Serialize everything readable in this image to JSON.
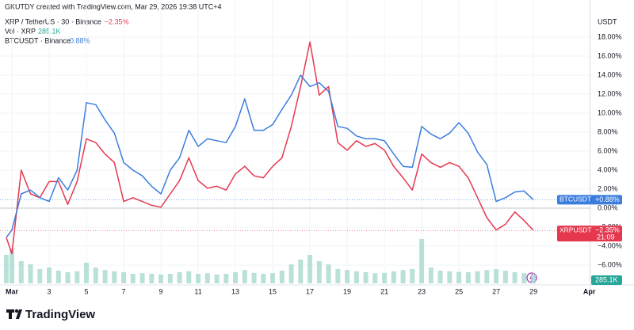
{
  "header": {
    "credit": "GKUTDY created with TradingView.com, Mar 29, 2026 19:38 UTC+4",
    "brand": "TradingView"
  },
  "chart_data": {
    "type": "line",
    "y_unit": "USDT",
    "x": [
      0.7,
      1,
      1.5,
      2,
      2.5,
      3,
      3.5,
      4,
      4.5,
      5,
      5.5,
      6,
      6.5,
      7,
      7.5,
      8,
      8.5,
      9,
      9.5,
      10,
      10.5,
      11,
      11.5,
      12,
      12.5,
      13,
      13.5,
      14,
      14.5,
      15,
      15.5,
      16,
      16.5,
      17,
      17.5,
      18,
      18.5,
      19,
      19.5,
      20,
      20.5,
      21,
      21.5,
      22,
      22.5,
      23,
      23.5,
      24,
      24.5,
      25,
      25.5,
      26,
      26.5,
      27,
      27.5,
      28,
      28.5,
      29
    ],
    "xlim": [
      0.36,
      32.06
    ],
    "xticks": [
      {
        "value": 1,
        "label": "Mar"
      },
      3,
      5,
      7,
      9,
      11,
      13,
      15,
      17,
      19,
      21,
      23,
      25,
      27,
      29,
      {
        "value": 32,
        "label": "Apr"
      }
    ],
    "ylim": [
      -7.92,
      20.25
    ],
    "yticks": [
      {
        "value": 18,
        "label": "18.00%"
      },
      {
        "value": 16,
        "label": "16.00%"
      },
      {
        "value": 14,
        "label": "14.00%"
      },
      {
        "value": 12,
        "label": "12.00%"
      },
      {
        "value": 10,
        "label": "10.00%"
      },
      {
        "value": 8,
        "label": "8.00%"
      },
      {
        "value": 6,
        "label": "6.00%"
      },
      {
        "value": 4,
        "label": "4.00%"
      },
      {
        "value": 2,
        "label": "2.00%"
      },
      {
        "value": 0,
        "label": "0.00%"
      },
      {
        "value": -2,
        "label": "−2.00%"
      },
      {
        "value": -4,
        "label": "−4.00%"
      },
      {
        "value": -6,
        "label": "−6.00%"
      }
    ],
    "series": [
      {
        "name": "XRPUSDT",
        "legend_name": "XRP / TetherUS · 30 · Binance",
        "last_label": "−2.35%",
        "countdown": "21:09",
        "color": "#e5384f",
        "values": [
          -3.1,
          -4.8,
          4.0,
          1.5,
          1.1,
          2.8,
          2.8,
          0.4,
          2.8,
          7.3,
          6.9,
          5.7,
          4.8,
          0.7,
          1.1,
          0.7,
          0.3,
          0.1,
          1.5,
          2.9,
          5.3,
          2.9,
          2.1,
          2.3,
          1.9,
          3.6,
          4.4,
          3.4,
          3.2,
          4.4,
          5.3,
          8.6,
          12.8,
          17.5,
          11.9,
          12.8,
          6.9,
          6.1,
          7.1,
          6.5,
          6.8,
          6.1,
          4.4,
          3.2,
          1.9,
          5.7,
          4.8,
          4.3,
          4.8,
          4.4,
          3.2,
          1.1,
          -1.0,
          -2.3,
          -1.7,
          -0.4,
          -1.3,
          -2.35
        ]
      },
      {
        "name": "BTCUSDT",
        "legend_name": "BTCUSDT · Binance",
        "legend_label": "0.88%",
        "last_label": "+0.88%",
        "color": "#3b7ddd",
        "values": [
          -3.1,
          -2.3,
          1.5,
          1.9,
          1.1,
          0.7,
          3.2,
          1.9,
          4.0,
          11.1,
          10.9,
          9.3,
          7.9,
          4.8,
          4.0,
          3.4,
          2.3,
          1.5,
          4.0,
          5.3,
          8.2,
          6.5,
          7.3,
          7.1,
          6.9,
          8.6,
          11.5,
          8.2,
          8.2,
          8.8,
          10.4,
          11.9,
          14.0,
          12.8,
          13.2,
          12.3,
          8.6,
          8.4,
          7.6,
          7.3,
          7.3,
          7.1,
          5.7,
          4.4,
          4.3,
          8.6,
          7.8,
          7.3,
          7.9,
          9.0,
          7.9,
          5.9,
          4.6,
          0.7,
          1.1,
          1.7,
          1.8,
          0.88
        ]
      }
    ],
    "volume": {
      "name": "Vol · XRP",
      "label": "285.1K",
      "color": "#a8d8cf",
      "values": [
        900,
        1100,
        700,
        600,
        450,
        500,
        400,
        350,
        380,
        650,
        500,
        420,
        380,
        350,
        300,
        320,
        300,
        280,
        300,
        350,
        380,
        300,
        320,
        280,
        300,
        350,
        420,
        330,
        300,
        320,
        400,
        600,
        750,
        900,
        700,
        600,
        450,
        420,
        380,
        350,
        320,
        330,
        380,
        420,
        450,
        1400,
        500,
        400,
        380,
        360,
        350,
        380,
        420,
        450,
        400,
        350,
        320,
        285.1
      ],
      "max": 1500
    },
    "grid": true
  }
}
